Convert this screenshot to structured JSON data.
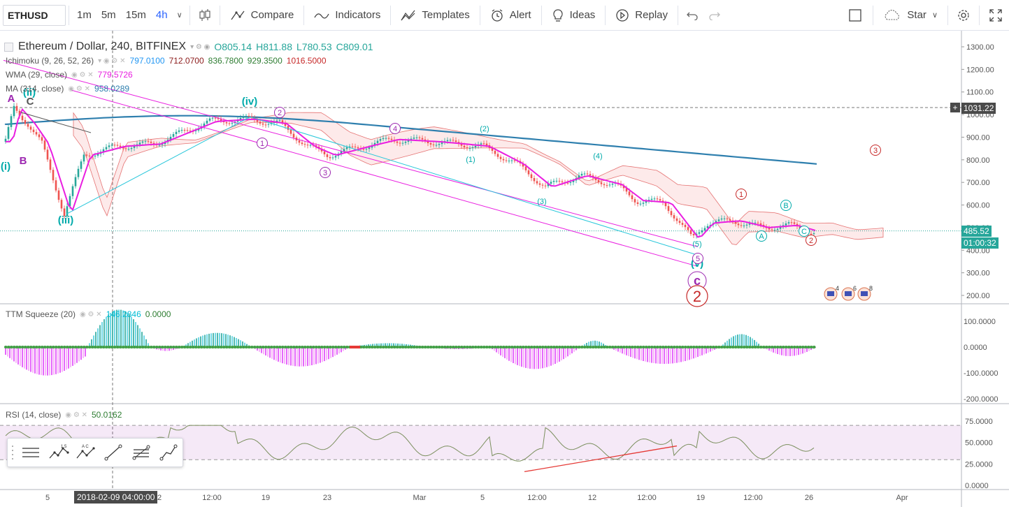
{
  "toolbar": {
    "symbol": "ETHUSD",
    "timeframes": [
      "1m",
      "5m",
      "15m",
      "4h"
    ],
    "compare": "Compare",
    "indicators": "Indicators",
    "templates": "Templates",
    "alert": "Alert",
    "ideas": "Ideas",
    "replay": "Replay",
    "star": "Star"
  },
  "legend": {
    "title": "Ethereum / Dollar, 240, BITFINEX",
    "ohlc": {
      "o": "O805.14",
      "h": "H811.88",
      "l": "L780.53",
      "c": "C809.01"
    },
    "ichimoku": {
      "name": "Ichimoku (9, 26, 52, 26)",
      "v1": "797.0100",
      "v2": "712.0700",
      "v3": "836.7800",
      "v4": "929.3500",
      "v5": "1016.5000"
    },
    "wma": {
      "name": "WMA (29, close)",
      "value": "779.5726"
    },
    "ma": {
      "name": "MA (314, close)",
      "value": "958.0289"
    },
    "ttm": {
      "name": "TTM Squeeze (20)",
      "v1": "146.2846",
      "v2": "0.0000"
    },
    "rsi": {
      "name": "RSI (14, close)",
      "value": "50.0162"
    }
  },
  "price_axis": [
    "1300.00",
    "1200.00",
    "1100.00",
    "1000.00",
    "900.00",
    "800.00",
    "700.00",
    "600.00",
    "500.00",
    "400.00",
    "300.00",
    "200.00"
  ],
  "price_markers": {
    "crosshair": "1031.22",
    "last": "485.52",
    "countdown": "01:00:32"
  },
  "ttm_axis": [
    "100.0000",
    "0.0000",
    "-100.0000",
    "-200.0000"
  ],
  "rsi_axis": [
    "75.0000",
    "50.0000",
    "25.0000",
    "0.0000"
  ],
  "time_axis": [
    "5",
    "12",
    "12:00",
    "19",
    "23",
    "Mar",
    "5",
    "12:00",
    "12",
    "12:00",
    "19",
    "12:00",
    "26",
    "Apr"
  ],
  "crosshair_date": "2018-02-09 04:00:00",
  "wave_labels": [
    "(i)",
    "(ii)",
    "(iii)",
    "(iv)",
    "(v)",
    "A",
    "B",
    "C",
    "1",
    "2",
    "3",
    "4",
    "5",
    "(1)",
    "(2)",
    "(3)",
    "(4)",
    "(5)",
    "c",
    "2"
  ],
  "events": [
    "4",
    "6",
    "8"
  ],
  "colors": {
    "up": "#26a69a",
    "down": "#ef5350",
    "wma": "#e91ee0",
    "ma": "#2e7fae",
    "wave": "#9c27b0",
    "cyan": "#26c6da",
    "red": "#c62828"
  }
}
